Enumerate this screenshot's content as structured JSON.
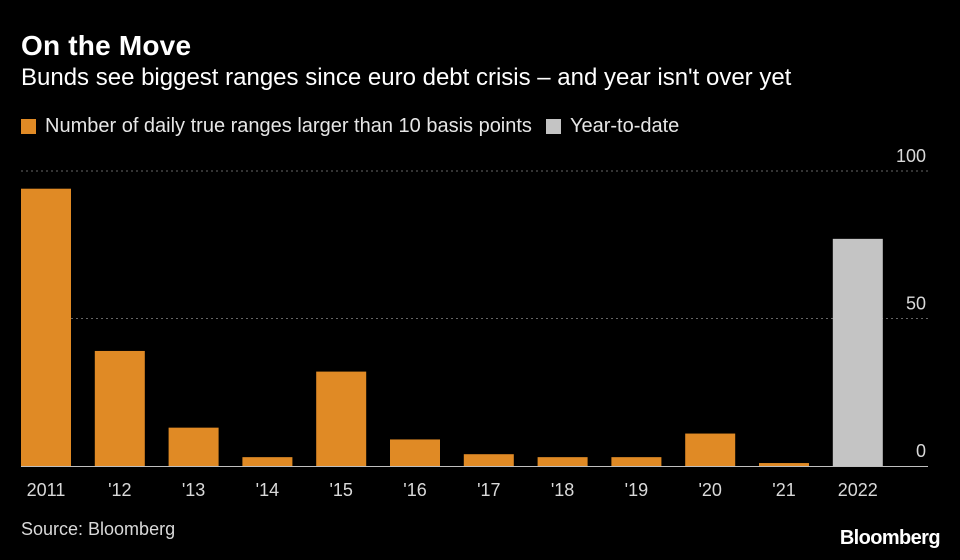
{
  "header": {
    "title": "On the Move",
    "subtitle": "Bunds see biggest ranges since euro debt crisis – and year isn't over yet"
  },
  "colors": {
    "background": "#000000",
    "primary_series": "#E08A25",
    "ytd_series": "#C4C4C4",
    "gridline": "#666666"
  },
  "footer": {
    "source": "Source: Bloomberg",
    "logo": "Bloomberg"
  },
  "chart_data": {
    "type": "bar",
    "title": "On the Move",
    "subtitle": "Bunds see biggest ranges since euro debt crisis – and year isn't over yet",
    "categories": [
      "2011",
      "'12",
      "'13",
      "'14",
      "'15",
      "'16",
      "'17",
      "'18",
      "'19",
      "'20",
      "'21",
      "2022"
    ],
    "series": [
      {
        "name": "Number of daily true ranges larger than 10 basis points",
        "values": [
          94,
          39,
          13,
          3,
          32,
          9,
          4,
          3,
          3,
          11,
          1,
          null
        ]
      },
      {
        "name": "Year-to-date",
        "values": [
          null,
          null,
          null,
          null,
          null,
          null,
          null,
          null,
          null,
          null,
          null,
          77
        ]
      }
    ],
    "ylim": [
      0,
      100
    ],
    "yticks": [
      0,
      50,
      100
    ],
    "ytick_labels": [
      "0",
      "50",
      "100"
    ],
    "xlabel": "",
    "ylabel": "",
    "y_axis_side": "right",
    "grid": true,
    "legend_position": "top-left"
  }
}
